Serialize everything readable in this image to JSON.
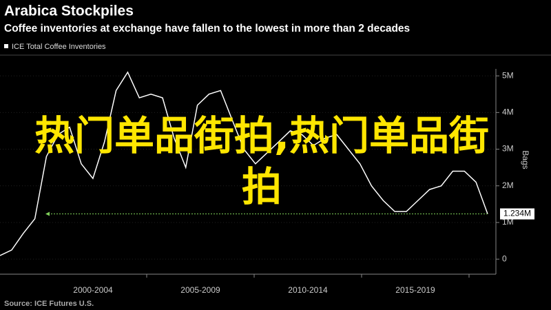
{
  "chart_data": {
    "type": "line",
    "title": "Arabica Stockpiles",
    "subtitle": "Coffee inventories at exchange have fallen to the lowest in more than 2 decades",
    "y_axis_label": "Bags",
    "source": "Source: ICE Futures U.S.",
    "period_labels": [
      "2000-2004",
      "2005-2009",
      "2010-2014",
      "2015-2019"
    ],
    "series": [
      {
        "name": "ICE Total Coffee Inventories",
        "color": "#ffffff",
        "values": [
          0.1,
          0.25,
          0.7,
          1.1,
          2.8,
          3.4,
          3.6,
          2.6,
          2.2,
          3.2,
          4.6,
          5.1,
          4.4,
          4.5,
          4.4,
          3.3,
          2.5,
          4.2,
          4.5,
          4.6,
          3.8,
          3.0,
          2.6,
          2.9,
          3.2,
          3.5,
          3.4,
          3.1,
          3.3,
          3.4,
          3.0,
          2.6,
          2.0,
          1.6,
          1.3,
          1.3,
          1.6,
          1.9,
          2.0,
          2.4,
          2.4,
          2.1,
          1.234
        ]
      }
    ],
    "last_value_label": {
      "value": 1.234,
      "label": "1.234M",
      "color": "#7fd15a"
    },
    "ylim": [
      -0.41,
      5.19
    ],
    "yticks": [
      0,
      {
        "value": 1,
        "label": "1M"
      },
      {
        "value": 2,
        "label": "2M"
      },
      {
        "value": 3,
        "label": "3M"
      },
      {
        "value": 4,
        "label": "4M"
      },
      {
        "value": 5,
        "label": "5M"
      }
    ],
    "axis_side": "right"
  },
  "overlay_text": "热门单品街拍,热门单品街拍"
}
